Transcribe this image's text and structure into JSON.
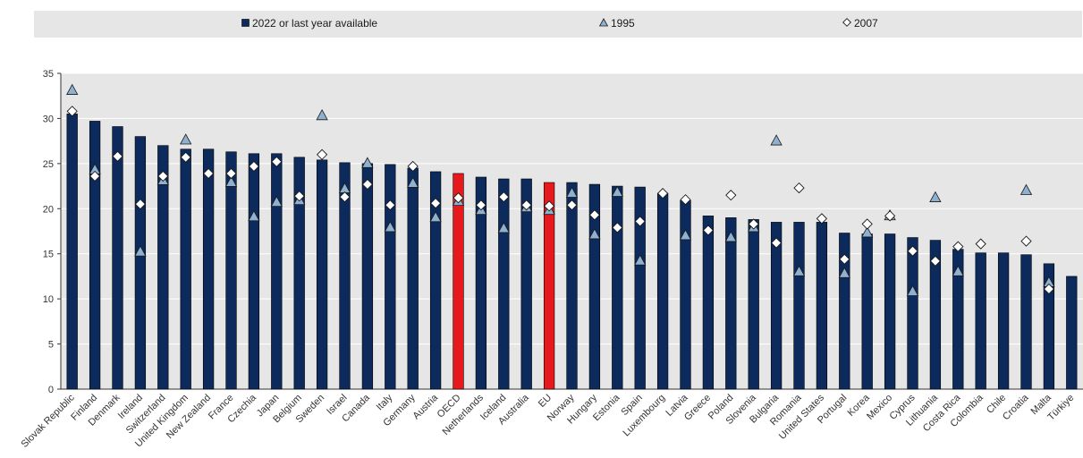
{
  "colors": {
    "bar": "#0d2a5c",
    "highlight": "#e8191c",
    "triangle_1995": "#8fb0cf",
    "diamond_2007": "#ffffff",
    "plot_bg": "#e6e6e6"
  },
  "chart_data": {
    "type": "bar",
    "ylim": [
      0,
      35
    ],
    "yticks": [
      0,
      5,
      10,
      15,
      20,
      25,
      30,
      35
    ],
    "grid": true,
    "legend_position": "top",
    "highlight": [
      "OECD",
      "EU"
    ],
    "legend": {
      "bars": "2022 or last year available",
      "triangle": "1995",
      "diamond": "2007"
    },
    "categories": [
      "Slovak Republic",
      "Finland",
      "Denmark",
      "Ireland",
      "Switzerland",
      "United Kingdom",
      "New Zealand",
      "France",
      "Czechia",
      "Japan",
      "Belgium",
      "Sweden",
      "Israel",
      "Canada",
      "Italy",
      "Germany",
      "Austria",
      "OECD",
      "Netherlands",
      "Iceland",
      "Australia",
      "EU",
      "Norway",
      "Hungary",
      "Estonia",
      "Spain",
      "Luxembourg",
      "Latvia",
      "Greece",
      "Poland",
      "Slovenia",
      "Bulgaria",
      "Romania",
      "United States",
      "Portugal",
      "Korea",
      "Mexico",
      "Cyprus",
      "Lithuania",
      "Costa Rica",
      "Colombia",
      "Chile",
      "Croatia",
      "Malta",
      "Türkiye"
    ],
    "series": [
      {
        "name": "2022 or last year available",
        "values": [
          30.5,
          29.7,
          29.1,
          28.0,
          27.0,
          26.6,
          26.6,
          26.3,
          26.1,
          26.1,
          25.7,
          25.4,
          25.1,
          25.0,
          24.9,
          24.5,
          24.1,
          23.9,
          23.5,
          23.3,
          23.3,
          22.9,
          22.9,
          22.7,
          22.5,
          22.4,
          21.7,
          20.9,
          19.2,
          19.0,
          18.8,
          18.5,
          18.5,
          18.5,
          17.3,
          17.2,
          17.2,
          16.8,
          16.5,
          15.5,
          15.1,
          15.1,
          14.9,
          13.9,
          12.5
        ]
      },
      {
        "name": "1995",
        "values": [
          33.1,
          24.3,
          null,
          15.2,
          23.1,
          27.6,
          null,
          22.9,
          19.1,
          20.7,
          20.9,
          30.3,
          22.2,
          25.0,
          17.9,
          22.8,
          19.0,
          20.8,
          19.8,
          17.8,
          20.1,
          19.8,
          21.7,
          17.1,
          21.8,
          14.2,
          null,
          17.0,
          null,
          16.8,
          17.9,
          27.5,
          13.0,
          null,
          12.8,
          17.3,
          19.2,
          10.8,
          21.2,
          13.0,
          null,
          null,
          22.0,
          11.8,
          null
        ]
      },
      {
        "name": "2007",
        "values": [
          30.8,
          23.6,
          25.8,
          20.5,
          23.6,
          25.7,
          23.9,
          23.9,
          24.7,
          25.2,
          21.4,
          26.0,
          21.3,
          22.7,
          20.4,
          24.7,
          20.6,
          21.2,
          20.4,
          21.3,
          20.4,
          20.3,
          20.4,
          19.3,
          17.9,
          18.6,
          21.7,
          21.0,
          17.6,
          21.5,
          18.3,
          16.2,
          22.3,
          18.9,
          14.4,
          18.3,
          19.2,
          15.3,
          14.2,
          15.8,
          16.1,
          null,
          16.4,
          11.1,
          null
        ]
      }
    ]
  }
}
